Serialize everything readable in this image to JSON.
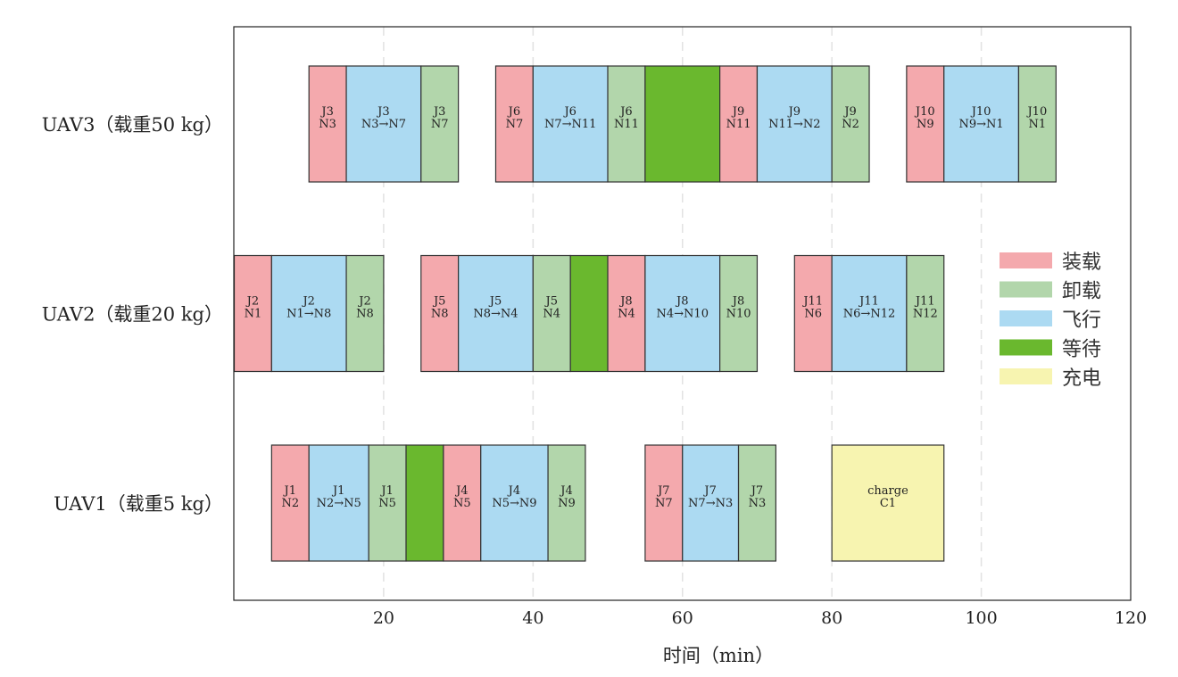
{
  "chart_data": {
    "type": "gantt",
    "title": "",
    "xlabel": "时间（min）",
    "ylabel": "",
    "xlim": [
      0,
      120
    ],
    "xticks": [
      20,
      40,
      60,
      80,
      100,
      120
    ],
    "grid": "vertical dashed",
    "legend_position": "right",
    "rows": [
      "UAV1（载重5 kg）",
      "UAV2（载重20 kg）",
      "UAV3（载重50 kg）"
    ],
    "legend": [
      {
        "key": "load",
        "label": "装载",
        "color": "#f4a9ad"
      },
      {
        "key": "unload",
        "label": "卸载",
        "color": "#b2d6ab"
      },
      {
        "key": "fly",
        "label": "飞行",
        "color": "#acdaf2"
      },
      {
        "key": "wait",
        "label": "等待",
        "color": "#6ab82e"
      },
      {
        "key": "charge",
        "label": "充电",
        "color": "#f7f4b0"
      }
    ],
    "segments": [
      {
        "row": 2,
        "start": 10,
        "end": 15,
        "type": "load",
        "l1": "J3",
        "l2": "N3"
      },
      {
        "row": 2,
        "start": 15,
        "end": 25,
        "type": "fly",
        "l1": "J3",
        "l2": "N3→N7"
      },
      {
        "row": 2,
        "start": 25,
        "end": 30,
        "type": "unload",
        "l1": "J3",
        "l2": "N7"
      },
      {
        "row": 2,
        "start": 35,
        "end": 40,
        "type": "load",
        "l1": "J6",
        "l2": "N7"
      },
      {
        "row": 2,
        "start": 40,
        "end": 50,
        "type": "fly",
        "l1": "J6",
        "l2": "N7→N11"
      },
      {
        "row": 2,
        "start": 50,
        "end": 55,
        "type": "unload",
        "l1": "J6",
        "l2": "N11"
      },
      {
        "row": 2,
        "start": 55,
        "end": 65,
        "type": "wait",
        "l1": "",
        "l2": ""
      },
      {
        "row": 2,
        "start": 65,
        "end": 70,
        "type": "load",
        "l1": "J9",
        "l2": "N11"
      },
      {
        "row": 2,
        "start": 70,
        "end": 80,
        "type": "fly",
        "l1": "J9",
        "l2": "N11→N2"
      },
      {
        "row": 2,
        "start": 80,
        "end": 85,
        "type": "unload",
        "l1": "J9",
        "l2": "N2"
      },
      {
        "row": 2,
        "start": 90,
        "end": 95,
        "type": "load",
        "l1": "J10",
        "l2": "N9"
      },
      {
        "row": 2,
        "start": 95,
        "end": 105,
        "type": "fly",
        "l1": "J10",
        "l2": "N9→N1"
      },
      {
        "row": 2,
        "start": 105,
        "end": 110,
        "type": "unload",
        "l1": "J10",
        "l2": "N1"
      },
      {
        "row": 1,
        "start": 0,
        "end": 5,
        "type": "load",
        "l1": "J2",
        "l2": "N1"
      },
      {
        "row": 1,
        "start": 5,
        "end": 15,
        "type": "fly",
        "l1": "J2",
        "l2": "N1→N8"
      },
      {
        "row": 1,
        "start": 15,
        "end": 20,
        "type": "unload",
        "l1": "J2",
        "l2": "N8"
      },
      {
        "row": 1,
        "start": 25,
        "end": 30,
        "type": "load",
        "l1": "J5",
        "l2": "N8"
      },
      {
        "row": 1,
        "start": 30,
        "end": 40,
        "type": "fly",
        "l1": "J5",
        "l2": "N8→N4"
      },
      {
        "row": 1,
        "start": 40,
        "end": 45,
        "type": "unload",
        "l1": "J5",
        "l2": "N4"
      },
      {
        "row": 1,
        "start": 45,
        "end": 50,
        "type": "wait",
        "l1": "",
        "l2": ""
      },
      {
        "row": 1,
        "start": 50,
        "end": 55,
        "type": "load",
        "l1": "J8",
        "l2": "N4"
      },
      {
        "row": 1,
        "start": 55,
        "end": 65,
        "type": "fly",
        "l1": "J8",
        "l2": "N4→N10"
      },
      {
        "row": 1,
        "start": 65,
        "end": 70,
        "type": "unload",
        "l1": "J8",
        "l2": "N10"
      },
      {
        "row": 1,
        "start": 75,
        "end": 80,
        "type": "load",
        "l1": "J11",
        "l2": "N6"
      },
      {
        "row": 1,
        "start": 80,
        "end": 90,
        "type": "fly",
        "l1": "J11",
        "l2": "N6→N12"
      },
      {
        "row": 1,
        "start": 90,
        "end": 95,
        "type": "unload",
        "l1": "J11",
        "l2": "N12"
      },
      {
        "row": 0,
        "start": 5,
        "end": 10,
        "type": "load",
        "l1": "J1",
        "l2": "N2"
      },
      {
        "row": 0,
        "start": 10,
        "end": 18,
        "type": "fly",
        "l1": "J1",
        "l2": "N2→N5"
      },
      {
        "row": 0,
        "start": 18,
        "end": 23,
        "type": "unload",
        "l1": "J1",
        "l2": "N5"
      },
      {
        "row": 0,
        "start": 23,
        "end": 28,
        "type": "wait",
        "l1": "",
        "l2": ""
      },
      {
        "row": 0,
        "start": 28,
        "end": 33,
        "type": "load",
        "l1": "J4",
        "l2": "N5"
      },
      {
        "row": 0,
        "start": 33,
        "end": 42,
        "type": "fly",
        "l1": "J4",
        "l2": "N5→N9"
      },
      {
        "row": 0,
        "start": 42,
        "end": 47,
        "type": "unload",
        "l1": "J4",
        "l2": "N9"
      },
      {
        "row": 0,
        "start": 55,
        "end": 60,
        "type": "load",
        "l1": "J7",
        "l2": "N7"
      },
      {
        "row": 0,
        "start": 60,
        "end": 67.5,
        "type": "fly",
        "l1": "J7",
        "l2": "N7→N3"
      },
      {
        "row": 0,
        "start": 67.5,
        "end": 72.5,
        "type": "unload",
        "l1": "J7",
        "l2": "N3"
      },
      {
        "row": 0,
        "start": 80,
        "end": 95,
        "type": "charge",
        "l1": "charge",
        "l2": "C1"
      }
    ]
  }
}
